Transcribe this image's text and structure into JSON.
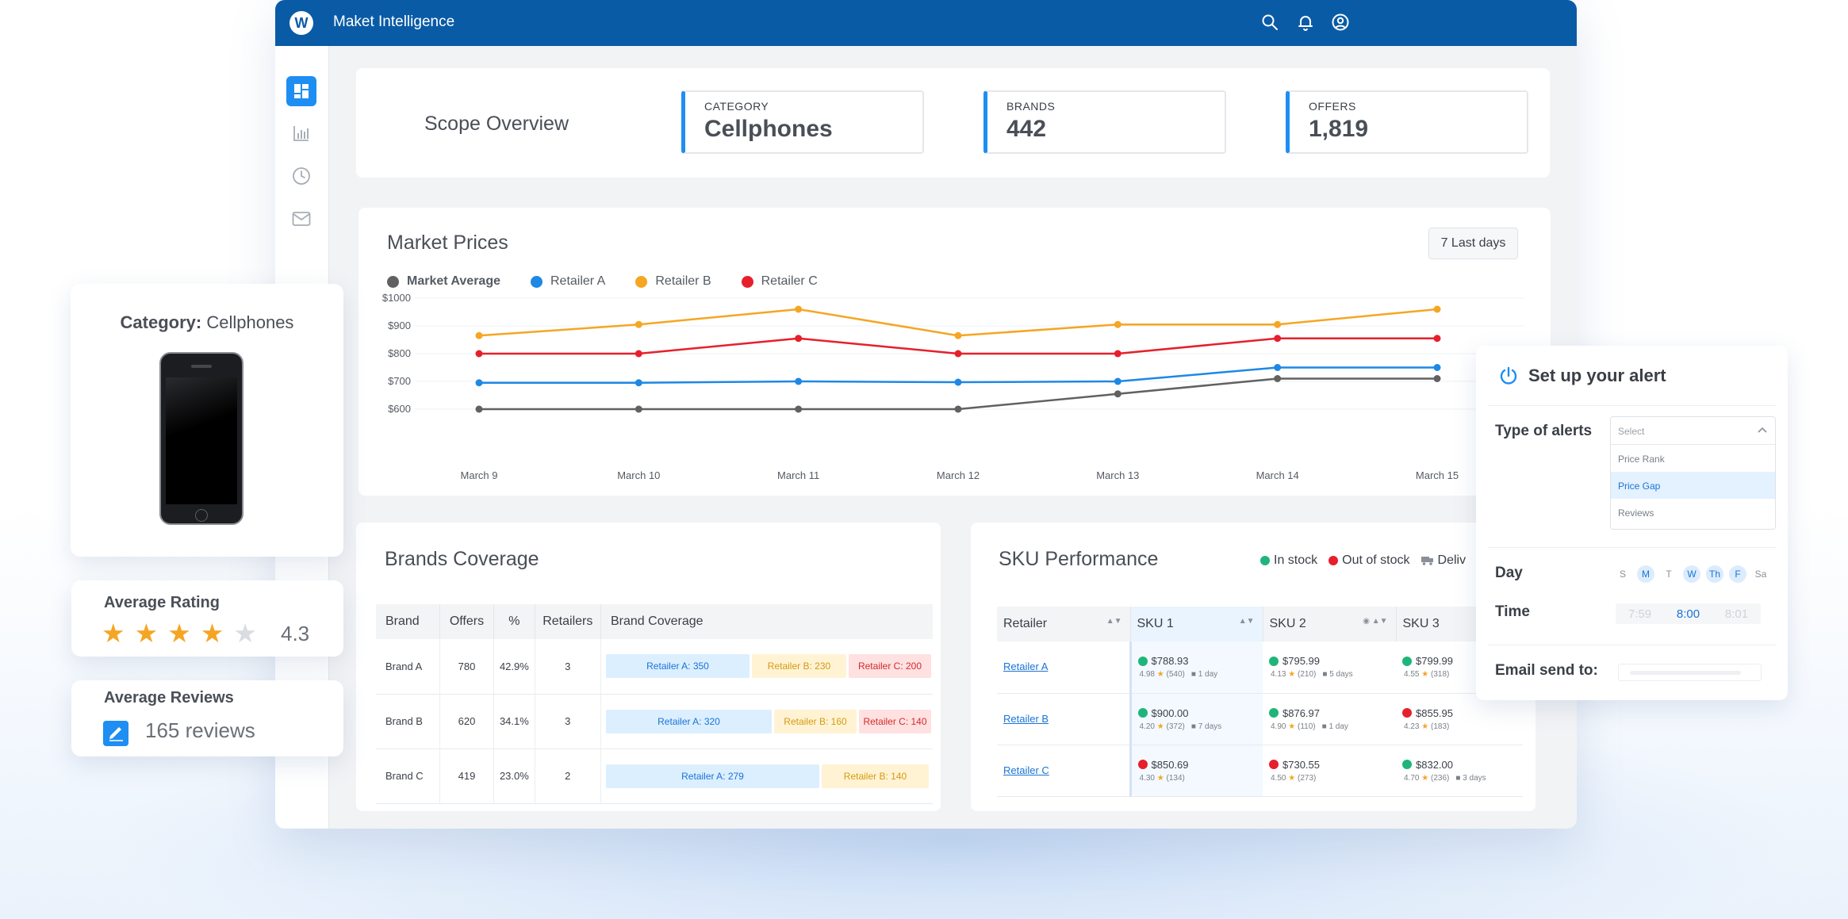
{
  "app": {
    "title": "Maket Intelligence",
    "logo_letter": "W",
    "accent": "#0a5ba6",
    "topbar_icons": [
      "search-icon",
      "bell-icon",
      "user-circle-icon"
    ],
    "sidebar_icons": [
      "dashboard-icon",
      "bar-chart-icon",
      "clock-icon",
      "mail-icon"
    ]
  },
  "scope": {
    "title": "Scope Overview",
    "kpis": [
      {
        "label": "CATEGORY",
        "value": "Cellphones"
      },
      {
        "label": "BRANDS",
        "value": "442"
      },
      {
        "label": "OFFERS",
        "value": "1,819"
      }
    ]
  },
  "market_prices": {
    "title": "Market Prices",
    "period_button": "7 Last days",
    "legend": [
      {
        "name": "Market Average",
        "color": "#616161"
      },
      {
        "name": "Retailer A",
        "color": "#1e88e5"
      },
      {
        "name": "Retailer B",
        "color": "#f5a623"
      },
      {
        "name": "Retailer C",
        "color": "#e5202c"
      }
    ]
  },
  "chart_data": {
    "type": "line",
    "x": [
      "March 9",
      "March 10",
      "March 11",
      "March 12",
      "March 13",
      "March 14",
      "March 15"
    ],
    "y_ticks": [
      "$1000",
      "$900",
      "$800",
      "$700",
      "$600"
    ],
    "ylim": [
      600,
      1000
    ],
    "grid": true,
    "series": [
      {
        "name": "Market Average",
        "color": "#616161",
        "values": [
          600,
          600,
          600,
          600,
          655,
          710,
          710
        ]
      },
      {
        "name": "Retailer A",
        "color": "#1e88e5",
        "values": [
          695,
          695,
          700,
          697,
          700,
          750,
          750
        ]
      },
      {
        "name": "Retailer B",
        "color": "#f5a623",
        "values": [
          865,
          905,
          960,
          865,
          905,
          905,
          960
        ]
      },
      {
        "name": "Retailer C",
        "color": "#e5202c",
        "values": [
          800,
          800,
          855,
          800,
          800,
          855,
          855
        ]
      }
    ]
  },
  "brands": {
    "title": "Brands Coverage",
    "headers": [
      "Brand",
      "Offers",
      "%",
      "Retailers",
      "Brand Coverage"
    ],
    "rows": [
      {
        "brand": "Brand A",
        "offers": "780",
        "pct": "42.9%",
        "retailers": "3",
        "coverage": [
          {
            "label": "Retailer A: 350",
            "k": "a",
            "share": 350
          },
          {
            "label": "Retailer B: 230",
            "k": "b",
            "share": 230
          },
          {
            "label": "Retailer C: 200",
            "k": "c",
            "share": 200
          }
        ]
      },
      {
        "brand": "Brand B",
        "offers": "620",
        "pct": "34.1%",
        "retailers": "3",
        "coverage": [
          {
            "label": "Retailer A: 320",
            "k": "a",
            "share": 320
          },
          {
            "label": "Retailer B: 160",
            "k": "b",
            "share": 160
          },
          {
            "label": "Retailer C: 140",
            "k": "c",
            "share": 140
          }
        ]
      },
      {
        "brand": "Brand C",
        "offers": "419",
        "pct": "23.0%",
        "retailers": "2",
        "coverage": [
          {
            "label": "Retailer A: 279",
            "k": "a",
            "share": 279
          },
          {
            "label": "Retailer B: 140",
            "k": "b",
            "share": 140
          }
        ]
      }
    ]
  },
  "sku": {
    "title": "SKU Performance",
    "legend": [
      {
        "label": "In stock",
        "color": "#1fb57a"
      },
      {
        "label": "Out of stock",
        "color": "#e5202c"
      },
      {
        "label": "Deliv",
        "color": "#8a9099"
      }
    ],
    "headers": [
      "Retailer",
      "SKU 1",
      "SKU 2",
      "SKU 3"
    ],
    "rows": [
      {
        "retailer": "Retailer A",
        "cells": [
          {
            "status": "in",
            "price": "$788.93",
            "rating": "4.98",
            "count": "(540)",
            "delivery": "1 day"
          },
          {
            "status": "in",
            "price": "$795.99",
            "rating": "4.13",
            "count": "(210)",
            "delivery": "5 days"
          },
          {
            "status": "in",
            "price": "$799.99",
            "rating": "4.55",
            "count": "(318)",
            "delivery": ""
          }
        ]
      },
      {
        "retailer": "Retailer B",
        "cells": [
          {
            "status": "in",
            "price": "$900.00",
            "rating": "4.20",
            "count": "(372)",
            "delivery": "7 days"
          },
          {
            "status": "in",
            "price": "$876.97",
            "rating": "4.90",
            "count": "(110)",
            "delivery": "1 day"
          },
          {
            "status": "out",
            "price": "$855.95",
            "rating": "4.23",
            "count": "(183)",
            "delivery": ""
          }
        ]
      },
      {
        "retailer": "Retailer C",
        "cells": [
          {
            "status": "out",
            "price": "$850.69",
            "rating": "4.30",
            "count": "(134)",
            "delivery": ""
          },
          {
            "status": "out",
            "price": "$730.55",
            "rating": "4.50",
            "count": "(273)",
            "delivery": ""
          },
          {
            "status": "in",
            "price": "$832.00",
            "rating": "4.70",
            "count": "(236)",
            "delivery": "3 days"
          }
        ]
      }
    ]
  },
  "category_card": {
    "label": "Category:",
    "value": "Cellphones"
  },
  "rating_card": {
    "title": "Average Rating",
    "value": "4.3",
    "stars_filled": 4,
    "stars_total": 5
  },
  "reviews_card": {
    "title": "Average Reviews",
    "value": "165 reviews"
  },
  "alert": {
    "title": "Set up your alert",
    "type_label": "Type of alerts",
    "select_placeholder": "Select",
    "options": [
      "Price Rank",
      "Price Gap",
      "Reviews"
    ],
    "selected_option": "Price Gap",
    "day_label": "Day",
    "days": [
      {
        "d": "S",
        "on": false
      },
      {
        "d": "M",
        "on": true
      },
      {
        "d": "T",
        "on": false
      },
      {
        "d": "W",
        "on": true
      },
      {
        "d": "Th",
        "on": true
      },
      {
        "d": "F",
        "on": true
      },
      {
        "d": "Sa",
        "on": false
      }
    ],
    "time_label": "Time",
    "times": [
      "7:59",
      "8:00",
      "8:01"
    ],
    "email_label": "Email send to:"
  }
}
